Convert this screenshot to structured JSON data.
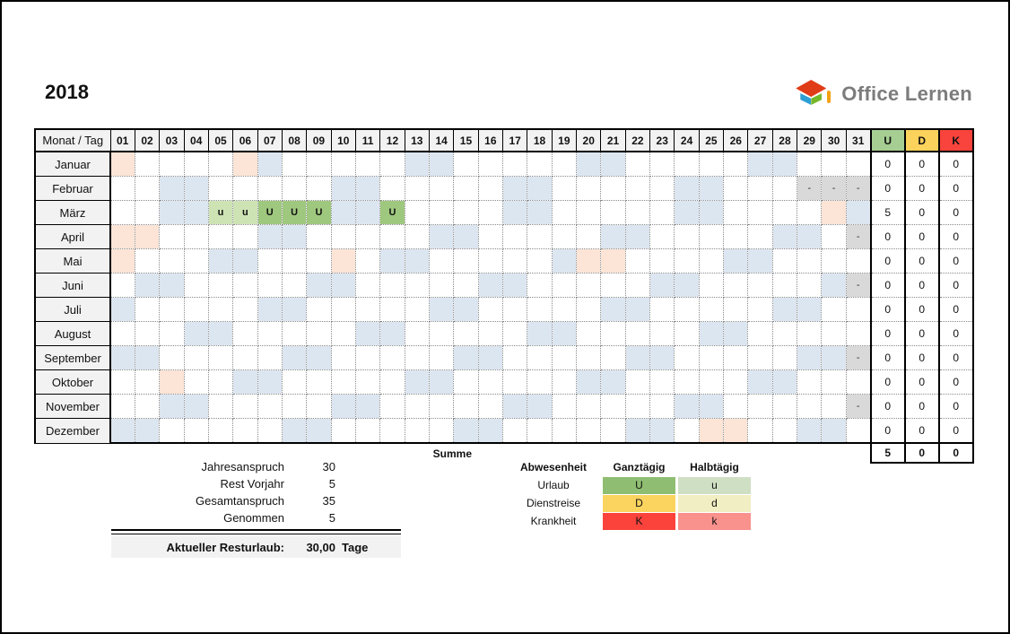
{
  "year": "2018",
  "logo": {
    "text": "Office Lernen"
  },
  "colors": {
    "weekend": "#dce6f1",
    "holiday": "#fce4d6",
    "dash": "#d9d9d9",
    "entry_full": "#9fc87f",
    "entry_half": "#cde3b4",
    "header_u": "#a6ce92",
    "header_d": "#fbd25c",
    "header_k": "#f8443c"
  },
  "calendar": {
    "corner_label": "Monat / Tag",
    "days": [
      "01",
      "02",
      "03",
      "04",
      "05",
      "06",
      "07",
      "08",
      "09",
      "10",
      "11",
      "12",
      "13",
      "14",
      "15",
      "16",
      "17",
      "18",
      "19",
      "20",
      "21",
      "22",
      "23",
      "24",
      "25",
      "26",
      "27",
      "28",
      "29",
      "30",
      "31"
    ],
    "summary_cols": [
      {
        "key": "u",
        "label": "U"
      },
      {
        "key": "d",
        "label": "D"
      },
      {
        "key": "k",
        "label": "K"
      }
    ],
    "months": [
      {
        "name": "Januar",
        "weekends": [
          7,
          13,
          14,
          20,
          21,
          27,
          28
        ],
        "holidays": [
          1,
          6
        ],
        "dashes": [],
        "entries": {},
        "u": "0",
        "d": "0",
        "k": "0"
      },
      {
        "name": "Februar",
        "weekends": [
          3,
          4,
          10,
          11,
          17,
          18,
          24,
          25
        ],
        "holidays": [],
        "dashes": [
          29,
          30,
          31
        ],
        "entries": {},
        "u": "0",
        "d": "0",
        "k": "0"
      },
      {
        "name": "März",
        "weekends": [
          3,
          4,
          10,
          11,
          17,
          18,
          24,
          25,
          31
        ],
        "holidays": [
          30
        ],
        "dashes": [],
        "entries": {
          "5": "u",
          "6": "u",
          "7": "U",
          "8": "U",
          "9": "U",
          "12": "U"
        },
        "u": "5",
        "d": "0",
        "k": "0"
      },
      {
        "name": "April",
        "weekends": [
          7,
          8,
          14,
          15,
          21,
          22,
          28,
          29
        ],
        "holidays": [
          1,
          2
        ],
        "dashes": [
          31
        ],
        "entries": {},
        "u": "0",
        "d": "0",
        "k": "0"
      },
      {
        "name": "Mai",
        "weekends": [
          5,
          6,
          12,
          13,
          19,
          26,
          27
        ],
        "holidays": [
          1,
          10,
          20,
          21
        ],
        "dashes": [],
        "entries": {},
        "u": "0",
        "d": "0",
        "k": "0"
      },
      {
        "name": "Juni",
        "weekends": [
          2,
          3,
          9,
          10,
          16,
          17,
          23,
          24,
          30
        ],
        "holidays": [],
        "dashes": [
          31
        ],
        "entries": {},
        "u": "0",
        "d": "0",
        "k": "0"
      },
      {
        "name": "Juli",
        "weekends": [
          1,
          7,
          8,
          14,
          15,
          21,
          22,
          28,
          29
        ],
        "holidays": [],
        "dashes": [],
        "entries": {},
        "u": "0",
        "d": "0",
        "k": "0"
      },
      {
        "name": "August",
        "weekends": [
          4,
          5,
          11,
          12,
          18,
          19,
          25,
          26
        ],
        "holidays": [],
        "dashes": [],
        "entries": {},
        "u": "0",
        "d": "0",
        "k": "0"
      },
      {
        "name": "September",
        "weekends": [
          1,
          2,
          8,
          9,
          15,
          16,
          22,
          23,
          29,
          30
        ],
        "holidays": [],
        "dashes": [
          31
        ],
        "entries": {},
        "u": "0",
        "d": "0",
        "k": "0"
      },
      {
        "name": "Oktober",
        "weekends": [
          6,
          7,
          13,
          14,
          20,
          21,
          27,
          28
        ],
        "holidays": [
          3
        ],
        "dashes": [],
        "entries": {},
        "u": "0",
        "d": "0",
        "k": "0"
      },
      {
        "name": "November",
        "weekends": [
          3,
          4,
          10,
          11,
          17,
          18,
          24,
          25
        ],
        "holidays": [],
        "dashes": [
          31
        ],
        "entries": {},
        "u": "0",
        "d": "0",
        "k": "0"
      },
      {
        "name": "Dezember",
        "weekends": [
          1,
          2,
          8,
          9,
          15,
          16,
          22,
          23,
          29,
          30
        ],
        "holidays": [
          25,
          26
        ],
        "dashes": [],
        "entries": {},
        "u": "0",
        "d": "0",
        "k": "0"
      }
    ],
    "summe_label": "Summe",
    "totals": {
      "u": "5",
      "d": "0",
      "k": "0"
    }
  },
  "stats": {
    "rows": [
      {
        "label": "Jahresanspruch",
        "value": "30"
      },
      {
        "label": "Rest Vorjahr",
        "value": "5"
      },
      {
        "label": "Gesamtanspruch",
        "value": "35"
      },
      {
        "label": "Genommen",
        "value": "5"
      }
    ],
    "result_label": "Aktueller Resturlaub:",
    "result_value": "30,00",
    "result_suffix": "Tage"
  },
  "legend": {
    "headers": [
      "Abwesenheit",
      "Ganztägig",
      "Halbtägig"
    ],
    "rows": [
      {
        "label": "Urlaub",
        "full": "U",
        "half": "u",
        "full_color": "#8fbe72",
        "half_color": "#cfdfc4"
      },
      {
        "label": "Dienstreise",
        "full": "D",
        "half": "d",
        "full_color": "#fbd45f",
        "half_color": "#f2eec3"
      },
      {
        "label": "Krankheit",
        "full": "K",
        "half": "k",
        "full_color": "#fb433c",
        "half_color": "#f9918d"
      }
    ]
  }
}
